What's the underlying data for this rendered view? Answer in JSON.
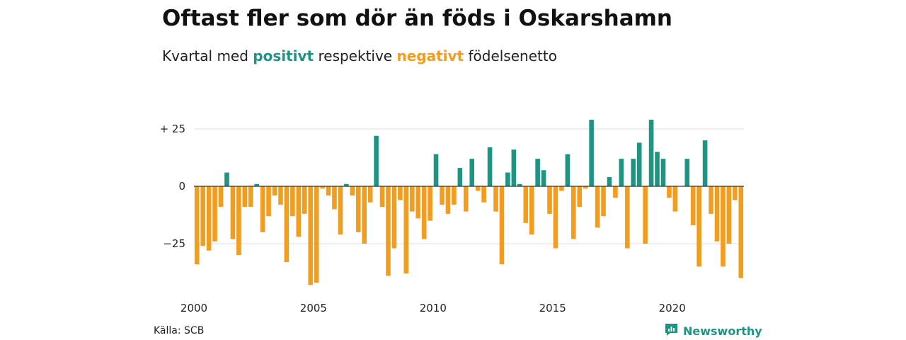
{
  "header": {
    "title": "Oftast fler som dör än föds i Oskarshamn",
    "subtitle_prefix": "Kvartal med ",
    "subtitle_positive": "positivt",
    "subtitle_middle": " respektive ",
    "subtitle_negative": "negativt",
    "subtitle_suffix": " födelsenetto"
  },
  "footer": {
    "source": "Källa: SCB",
    "brand": "Newsworthy"
  },
  "colors": {
    "positive": "#1f9483",
    "negative": "#f29d1d",
    "grid": "#dddddd",
    "zero_line": "#333333"
  },
  "icons": {
    "brand": "newsworthy-logo-icon"
  },
  "chart_data": {
    "type": "bar",
    "title": "Oftast fler som dör än föds i Oskarshamn",
    "subtitle": "Kvartal med positivt respektive negativt födelsenetto",
    "xlabel": "",
    "ylabel": "",
    "ylim": [
      -43,
      29
    ],
    "yticks": [
      25,
      0,
      -25
    ],
    "ytick_labels": [
      "+ 25",
      "0",
      "−25"
    ],
    "xticks": [
      2000,
      2005,
      2010,
      2015,
      2020
    ],
    "ytick_grid": true,
    "start": "2000 Q1",
    "frequency": "quarterly",
    "values": [
      -34,
      -26,
      -28,
      -24,
      -9,
      6,
      -23,
      -30,
      -9,
      -9,
      1,
      -20,
      -13,
      -4,
      -8,
      -33,
      -13,
      -22,
      -12,
      -43,
      -42,
      -1,
      -4,
      -10,
      -21,
      1,
      -4,
      -20,
      -25,
      -7,
      22,
      -9,
      -39,
      -27,
      -6,
      -38,
      -11,
      -14,
      -23,
      -15,
      14,
      -8,
      -12,
      -8,
      8,
      -11,
      12,
      -2,
      -7,
      17,
      -11,
      -34,
      6,
      16,
      1,
      -16,
      -21,
      12,
      7,
      -12,
      -27,
      -2,
      14,
      -23,
      -9,
      -1,
      29,
      -18,
      -13,
      4,
      -5,
      12,
      -27,
      12,
      19,
      -25,
      29,
      15,
      12,
      -5,
      -11,
      0,
      12,
      -17,
      -35,
      20,
      -12,
      -24,
      -35,
      -25,
      -6,
      -40
    ]
  }
}
